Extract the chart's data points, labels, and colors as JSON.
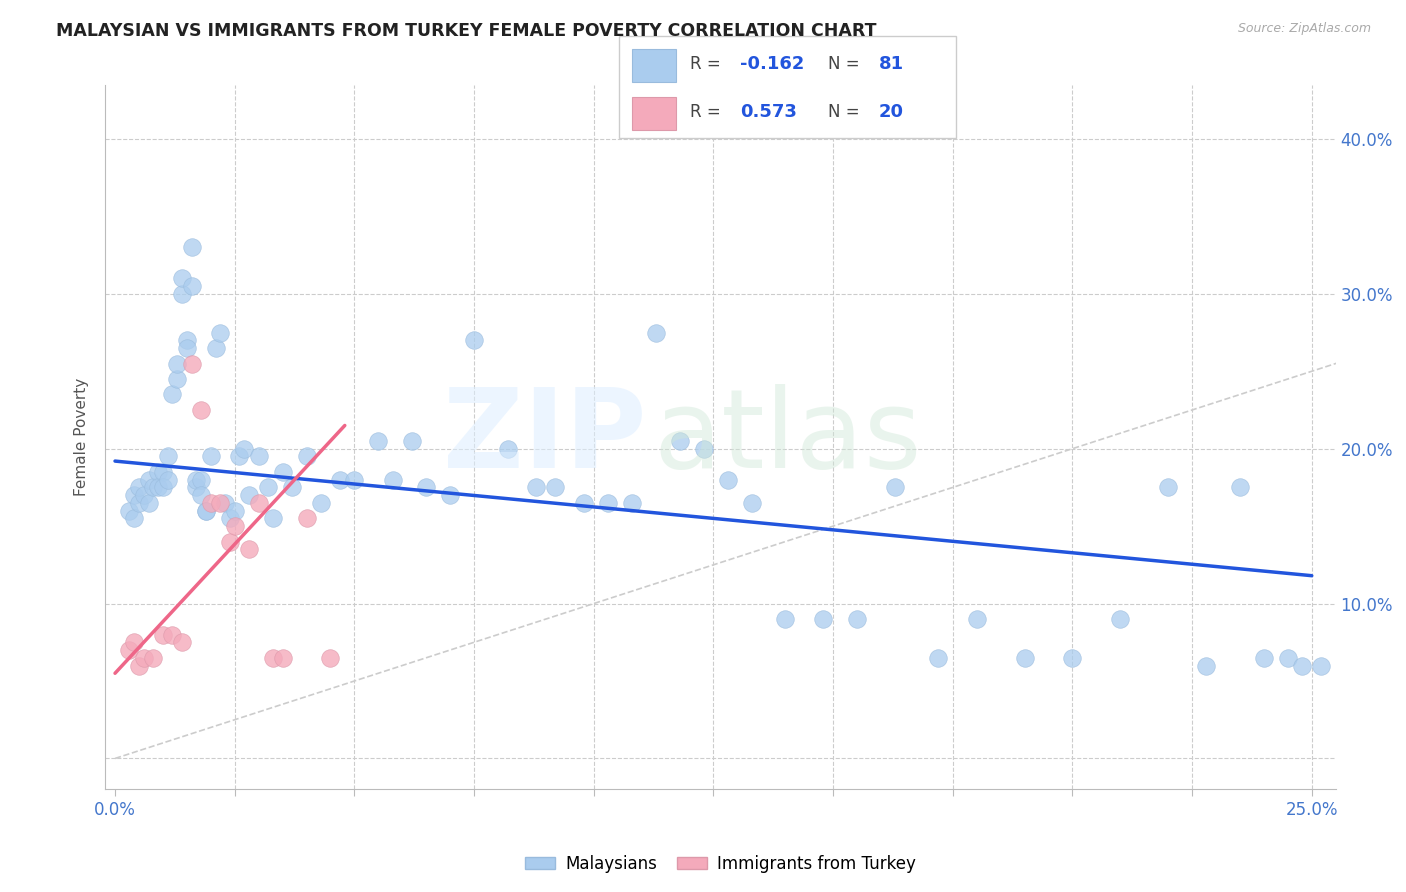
{
  "title": "MALAYSIAN VS IMMIGRANTS FROM TURKEY FEMALE POVERTY CORRELATION CHART",
  "source": "Source: ZipAtlas.com",
  "ylabel_label": "Female Poverty",
  "xlim": [
    -0.002,
    0.255
  ],
  "ylim": [
    -0.02,
    0.435
  ],
  "x_ticks": [
    0.0,
    0.025,
    0.05,
    0.075,
    0.1,
    0.125,
    0.15,
    0.175,
    0.2,
    0.225,
    0.25
  ],
  "x_tick_labels_show": {
    "0.0": "0.0%",
    "0.25": "25.0%"
  },
  "y_ticks": [
    0.0,
    0.1,
    0.2,
    0.3,
    0.4
  ],
  "y_tick_labels_right": [
    "",
    "10.0%",
    "20.0%",
    "30.0%",
    "40.0%"
  ],
  "blue_color": "#AACCEE",
  "pink_color": "#F4AABB",
  "blue_line_color": "#2255DD",
  "pink_line_color": "#EE6688",
  "legend_label_blue": "Malaysians",
  "legend_label_pink": "Immigrants from Turkey",
  "blue_R_str": "-0.162",
  "blue_N_str": "81",
  "pink_R_str": "0.573",
  "pink_N_str": "20",
  "blue_scatter_x": [
    0.003,
    0.004,
    0.004,
    0.005,
    0.005,
    0.006,
    0.007,
    0.007,
    0.008,
    0.009,
    0.009,
    0.01,
    0.01,
    0.011,
    0.011,
    0.012,
    0.013,
    0.013,
    0.014,
    0.014,
    0.015,
    0.015,
    0.016,
    0.016,
    0.017,
    0.017,
    0.018,
    0.018,
    0.019,
    0.019,
    0.02,
    0.021,
    0.022,
    0.023,
    0.024,
    0.025,
    0.026,
    0.027,
    0.028,
    0.03,
    0.032,
    0.033,
    0.035,
    0.037,
    0.04,
    0.043,
    0.047,
    0.05,
    0.055,
    0.058,
    0.062,
    0.065,
    0.07,
    0.075,
    0.082,
    0.088,
    0.092,
    0.098,
    0.103,
    0.108,
    0.113,
    0.118,
    0.123,
    0.128,
    0.133,
    0.14,
    0.148,
    0.155,
    0.163,
    0.172,
    0.18,
    0.19,
    0.2,
    0.21,
    0.22,
    0.228,
    0.235,
    0.24,
    0.245,
    0.248,
    0.252
  ],
  "blue_scatter_y": [
    0.16,
    0.17,
    0.155,
    0.165,
    0.175,
    0.17,
    0.165,
    0.18,
    0.175,
    0.185,
    0.175,
    0.185,
    0.175,
    0.195,
    0.18,
    0.235,
    0.245,
    0.255,
    0.3,
    0.31,
    0.27,
    0.265,
    0.33,
    0.305,
    0.175,
    0.18,
    0.18,
    0.17,
    0.16,
    0.16,
    0.195,
    0.265,
    0.275,
    0.165,
    0.155,
    0.16,
    0.195,
    0.2,
    0.17,
    0.195,
    0.175,
    0.155,
    0.185,
    0.175,
    0.195,
    0.165,
    0.18,
    0.18,
    0.205,
    0.18,
    0.205,
    0.175,
    0.17,
    0.27,
    0.2,
    0.175,
    0.175,
    0.165,
    0.165,
    0.165,
    0.275,
    0.205,
    0.2,
    0.18,
    0.165,
    0.09,
    0.09,
    0.09,
    0.175,
    0.065,
    0.09,
    0.065,
    0.065,
    0.09,
    0.175,
    0.06,
    0.175,
    0.065,
    0.065,
    0.06,
    0.06
  ],
  "pink_scatter_x": [
    0.003,
    0.004,
    0.005,
    0.006,
    0.008,
    0.01,
    0.012,
    0.014,
    0.016,
    0.018,
    0.02,
    0.022,
    0.024,
    0.025,
    0.028,
    0.03,
    0.033,
    0.035,
    0.04,
    0.045
  ],
  "pink_scatter_y": [
    0.07,
    0.075,
    0.06,
    0.065,
    0.065,
    0.08,
    0.08,
    0.075,
    0.255,
    0.225,
    0.165,
    0.165,
    0.14,
    0.15,
    0.135,
    0.165,
    0.065,
    0.065,
    0.155,
    0.065
  ],
  "blue_line_x": [
    0.0,
    0.25
  ],
  "blue_line_y": [
    0.192,
    0.118
  ],
  "pink_line_x": [
    0.0,
    0.048
  ],
  "pink_line_y": [
    0.055,
    0.215
  ]
}
